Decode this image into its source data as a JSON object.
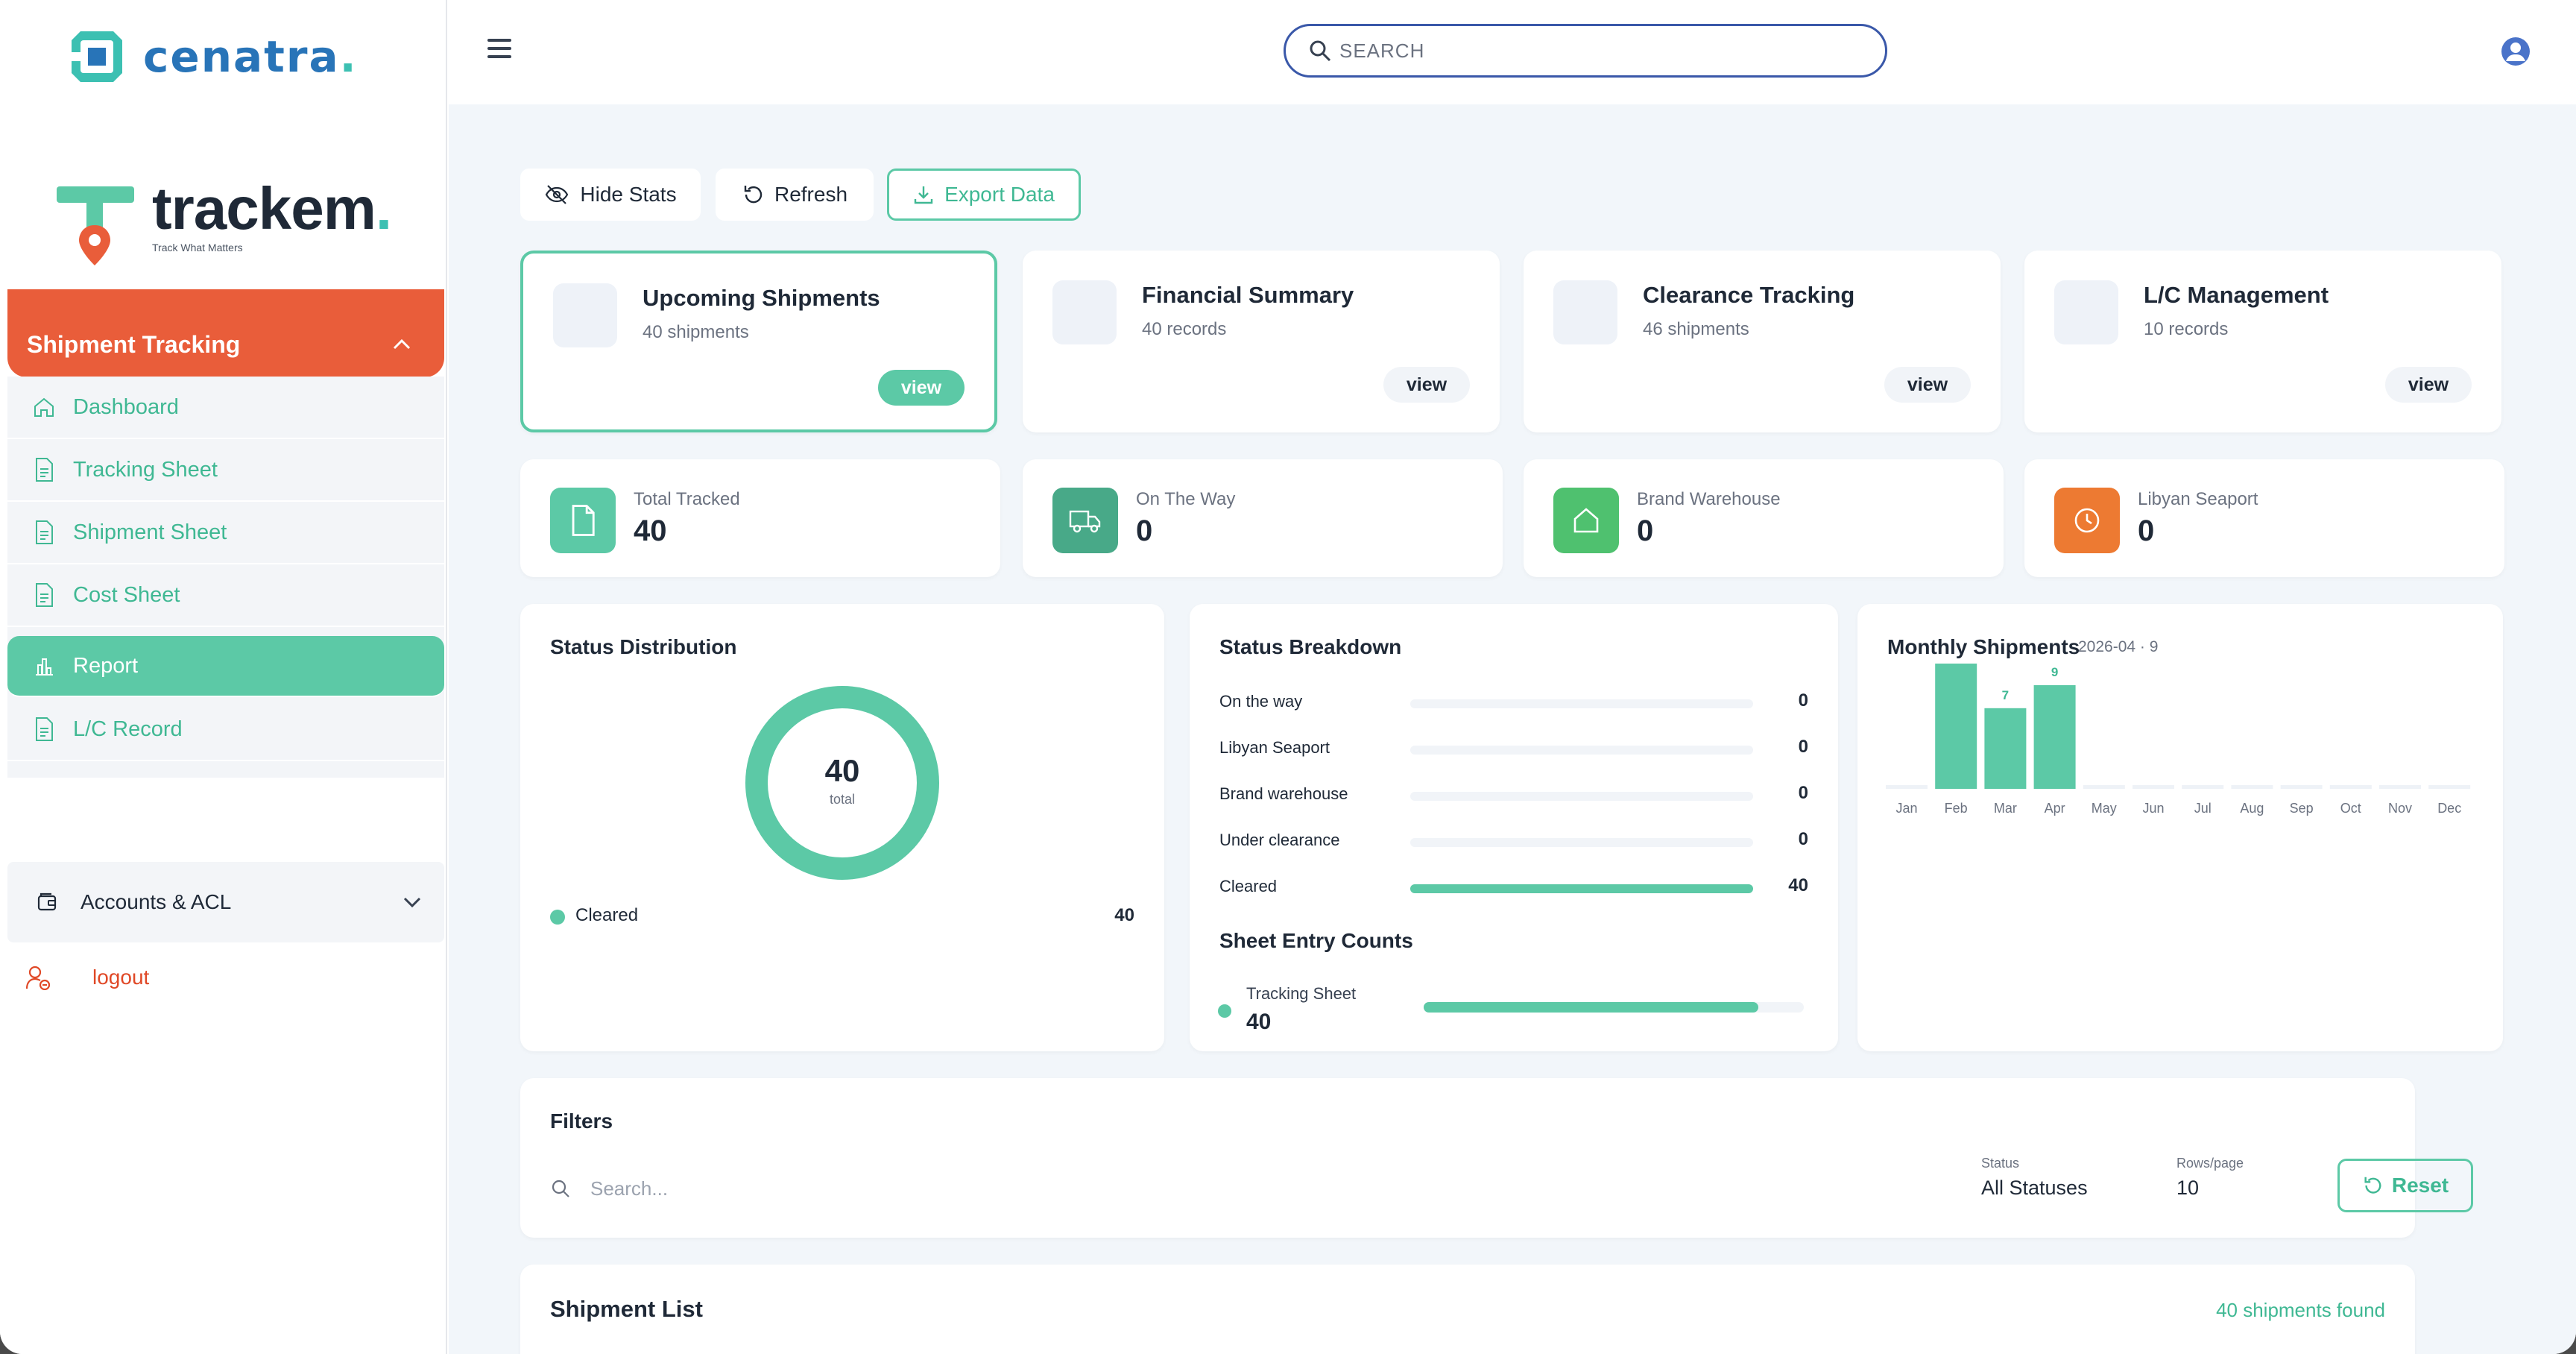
{
  "brand": {
    "company": "cenatra",
    "company_dot": ".",
    "product": "trackem",
    "product_dot": ".",
    "tagline": "Track What Matters"
  },
  "sidebar": {
    "section_title": "Shipment Tracking",
    "items": [
      {
        "label": "Dashboard",
        "icon": "home-icon",
        "active": false
      },
      {
        "label": "Tracking Sheet",
        "icon": "document-icon",
        "active": false
      },
      {
        "label": "Shipment Sheet",
        "icon": "document-icon",
        "active": false
      },
      {
        "label": "Cost Sheet",
        "icon": "document-icon",
        "active": false
      },
      {
        "label": "Report",
        "icon": "bar-chart-icon",
        "active": true
      },
      {
        "label": "L/C Record",
        "icon": "document-icon",
        "active": false
      }
    ],
    "accounts_label": "Accounts & ACL",
    "logout_label": "logout"
  },
  "header": {
    "search_placeholder": "SEARCH"
  },
  "toolbar": {
    "hide_stats": "Hide Stats",
    "refresh": "Refresh",
    "export": "Export Data"
  },
  "modules": [
    {
      "title": "Upcoming Shipments",
      "subtitle": "40 shipments",
      "button": "view",
      "selected": true
    },
    {
      "title": "Financial Summary",
      "subtitle": "40 records",
      "button": "view",
      "selected": false
    },
    {
      "title": "Clearance Tracking",
      "subtitle": "46 shipments",
      "button": "view",
      "selected": false
    },
    {
      "title": "L/C Management",
      "subtitle": "10 records",
      "button": "view",
      "selected": false
    }
  ],
  "stats": [
    {
      "label": "Total Tracked",
      "value": "40",
      "icon": "document-icon",
      "color": "#5cc9a6"
    },
    {
      "label": "On The Way",
      "value": "0",
      "icon": "truck-icon",
      "color": "#48a988"
    },
    {
      "label": "Brand Warehouse",
      "value": "0",
      "icon": "house-icon",
      "color": "#4fc16f"
    },
    {
      "label": "Libyan Seaport",
      "value": "0",
      "icon": "clock-icon",
      "color": "#ed7a32"
    }
  ],
  "status_distribution": {
    "title": "Status Distribution",
    "total": "40",
    "total_label": "total",
    "legend": [
      {
        "label": "Cleared",
        "value": "40"
      }
    ]
  },
  "status_breakdown": {
    "title": "Status Breakdown",
    "rows": [
      {
        "label": "On the way",
        "value": "0",
        "fraction": 0
      },
      {
        "label": "Libyan Seaport",
        "value": "0",
        "fraction": 0
      },
      {
        "label": "Brand warehouse",
        "value": "0",
        "fraction": 0
      },
      {
        "label": "Under clearance",
        "value": "0",
        "fraction": 0
      },
      {
        "label": "Cleared",
        "value": "40",
        "fraction": 1
      }
    ],
    "sheet_title": "Sheet Entry Counts",
    "sheet_rows": [
      {
        "label": "Tracking Sheet",
        "value": "40",
        "fraction": 0.88
      }
    ]
  },
  "chart_data": {
    "type": "bar",
    "title": "Monthly Shipments",
    "subtitle": "2026-04 · 9",
    "categories": [
      "Jan",
      "Feb",
      "Mar",
      "Apr",
      "May",
      "Jun",
      "Jul",
      "Aug",
      "Sep",
      "Oct",
      "Nov",
      "Dec"
    ],
    "values": [
      0,
      11,
      7,
      9,
      0,
      0,
      0,
      0,
      0,
      0,
      0,
      0
    ],
    "ylim": [
      0,
      11
    ],
    "grid": false,
    "color": "#5cc9a6"
  },
  "filters": {
    "title": "Filters",
    "search_placeholder": "Search...",
    "status_label": "Status",
    "status_value": "All Statuses",
    "rows_label": "Rows/page",
    "rows_value": "10",
    "reset": "Reset"
  },
  "shipment_list": {
    "title": "Shipment List",
    "count_text": "40 shipments found"
  },
  "colors": {
    "accent": "#5cc9a6",
    "brand_orange": "#e95d3a",
    "search_border": "#3a58a9"
  }
}
